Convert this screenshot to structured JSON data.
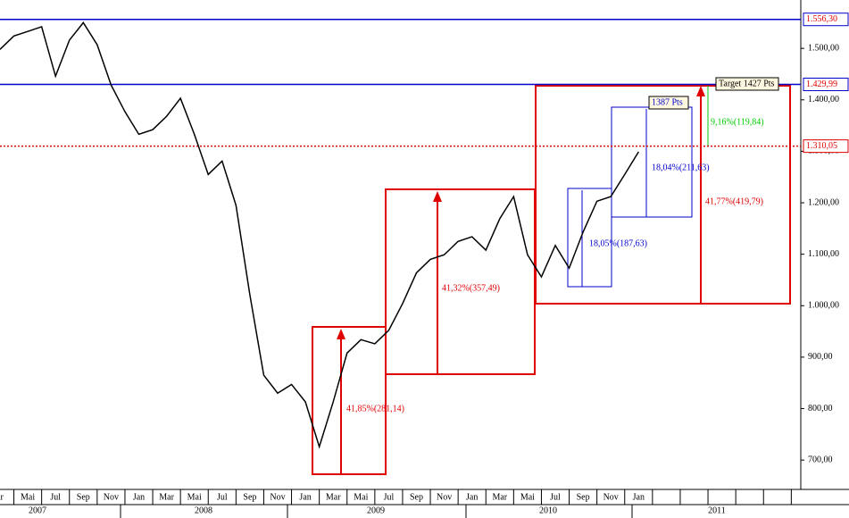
{
  "chart_data": {
    "type": "line",
    "color": "#000000",
    "categories": [
      "ar",
      null,
      "Mai",
      null,
      "Jul",
      null,
      "Sep",
      null,
      "Nov",
      null,
      "Jan",
      null,
      "Mar",
      null,
      "Mai",
      null,
      "Jul",
      null,
      "Sep",
      null,
      "Nov",
      null,
      "Jan",
      null,
      "Mar",
      null,
      "Mai",
      null,
      "Jul",
      null,
      "Sep",
      null,
      "Nov",
      null,
      "Jan",
      null,
      "Mar",
      null,
      "Mai",
      null,
      "Jul",
      null,
      "Sep",
      null,
      "Nov",
      null,
      "Jan",
      null,
      null,
      null,
      null,
      null,
      null,
      null,
      null,
      null,
      null,
      null
    ],
    "values": [
      1498,
      1524,
      1533,
      1542,
      1446,
      1516,
      1550,
      1507,
      1429,
      1377,
      1333,
      1342,
      1368,
      1403,
      1333,
      1255,
      1281,
      1195,
      1021,
      865,
      830,
      847,
      813,
      726,
      813,
      908,
      934,
      926,
      952,
      1004,
      1064,
      1090,
      1099,
      1125,
      1134,
      1108,
      1169,
      1212,
      1099,
      1056,
      1117,
      1073,
      1143,
      1203,
      1212,
      1255,
      1299,
      null,
      null,
      null,
      null,
      null,
      null,
      null,
      null,
      null,
      null,
      null
    ],
    "years": [
      "2007",
      "2008",
      "2009",
      "2010",
      "2011"
    ],
    "ylim": [
      643,
      1594
    ],
    "yticks": [
      {
        "value": 1500,
        "label": "1.500,00"
      },
      {
        "value": 1400,
        "label": "1.400,00"
      },
      {
        "value": 1300,
        "label": "1.300,00"
      },
      {
        "value": 1200,
        "label": "1.200,00"
      },
      {
        "value": 1100,
        "label": "1.100,00"
      },
      {
        "value": 1000,
        "label": "1.000,00"
      },
      {
        "value": 900,
        "label": "900,00"
      },
      {
        "value": 800,
        "label": "800,00"
      },
      {
        "value": 700,
        "label": "700,00"
      }
    ],
    "levels": [
      {
        "value": 1556.3,
        "label": "1.556,30",
        "color": "#0000cc",
        "dashed": false
      },
      {
        "value": 1429.99,
        "label": "1.429,99",
        "color": "#0000cc",
        "dashed": false
      },
      {
        "value": 1310.05,
        "label": "1.310,05",
        "color": "#e00000",
        "dashed": true
      }
    ],
    "annotations": [
      {
        "text": "41,85%(281,14)",
        "color": "#e00000"
      },
      {
        "text": "41,32%(357,49)",
        "color": "#e00000"
      },
      {
        "text": "18,05%(187,63)",
        "color": "#0000cc"
      },
      {
        "text": "18,04%(211,63)",
        "color": "#0000cc"
      },
      {
        "text": "41,77%(419,79)",
        "color": "#e00000"
      },
      {
        "text": "9,16%(119,84)",
        "color": "#00cc00"
      },
      {
        "text": "1387 Pts",
        "color": "#0000cc"
      },
      {
        "text": "Target 1427 Pts",
        "color": "#000000"
      }
    ]
  }
}
